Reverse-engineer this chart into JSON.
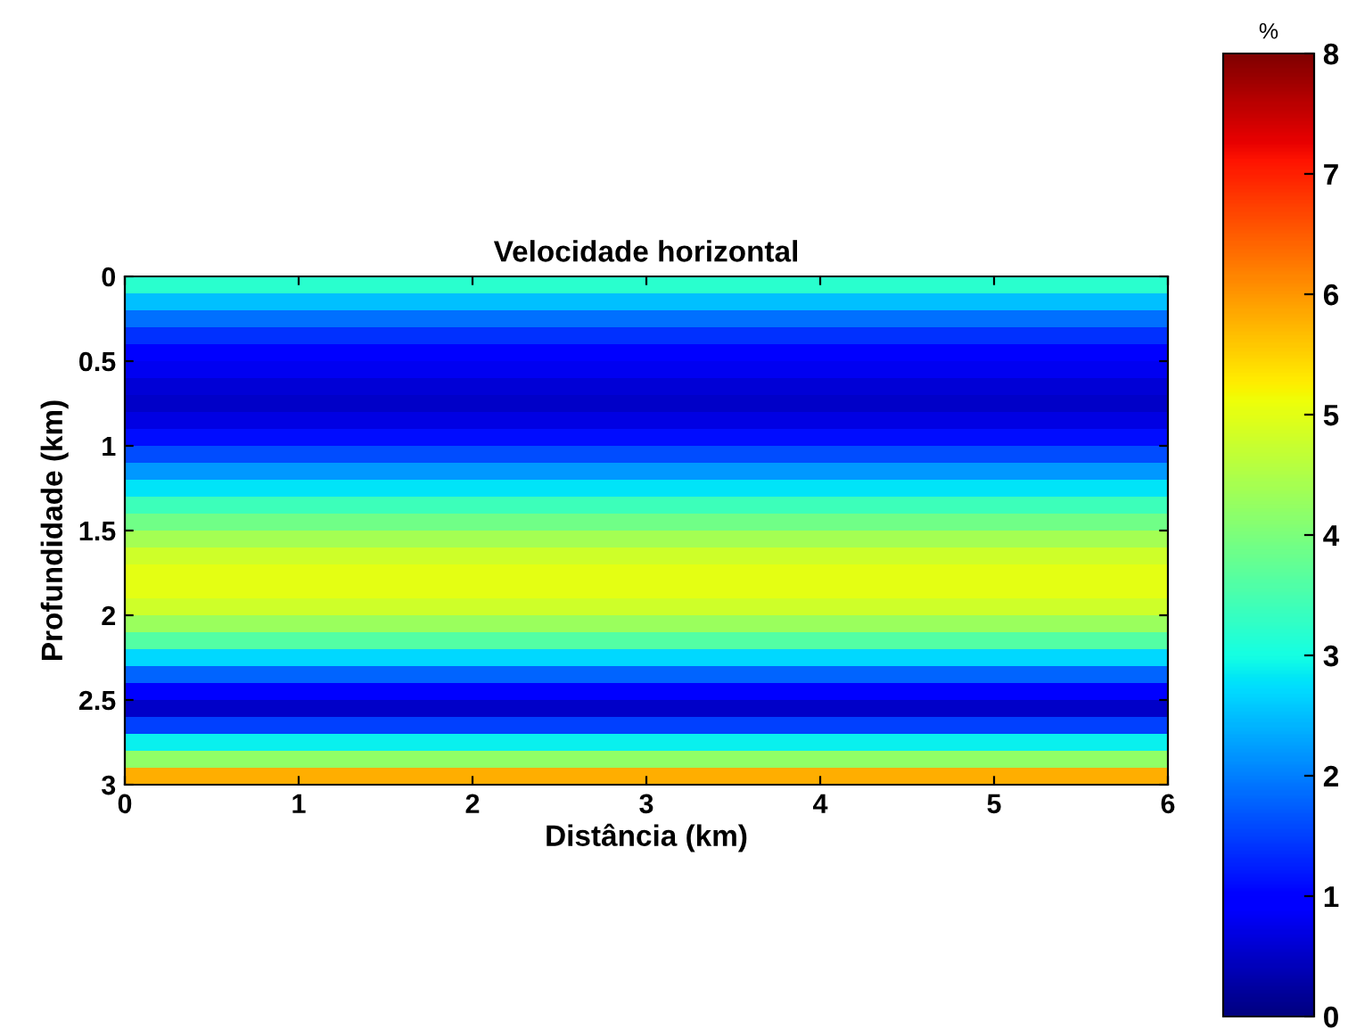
{
  "chart_data": {
    "type": "heatmap",
    "title": "Velocidade horizontal",
    "xlabel": "Distância (km)",
    "ylabel": "Profundidade (km)",
    "clabel": "%",
    "xlim": [
      0,
      6
    ],
    "ylim": [
      3,
      0
    ],
    "xticks": [
      0,
      1,
      2,
      3,
      4,
      5,
      6
    ],
    "yticks": [
      0,
      0.5,
      1,
      1.5,
      2,
      2.5,
      3
    ],
    "clim": [
      0,
      8
    ],
    "cticks": [
      0,
      1,
      2,
      3,
      4,
      5,
      6,
      7,
      8
    ],
    "cells": [
      [
        3.2
      ],
      [
        2.5
      ],
      [
        1.9
      ],
      [
        1.4
      ],
      [
        1.0
      ],
      [
        0.8
      ],
      [
        0.6
      ],
      [
        0.5
      ],
      [
        0.7
      ],
      [
        1.1
      ],
      [
        1.6
      ],
      [
        2.2
      ],
      [
        2.8
      ],
      [
        3.4
      ],
      [
        3.9
      ],
      [
        4.4
      ],
      [
        4.8
      ],
      [
        5.0
      ],
      [
        5.0
      ],
      [
        4.8
      ],
      [
        4.3
      ],
      [
        3.6
      ],
      [
        2.7
      ],
      [
        1.8
      ],
      [
        0.9
      ],
      [
        0.5
      ],
      [
        1.5
      ],
      [
        2.9
      ],
      [
        4.2
      ],
      [
        5.8
      ]
    ]
  }
}
